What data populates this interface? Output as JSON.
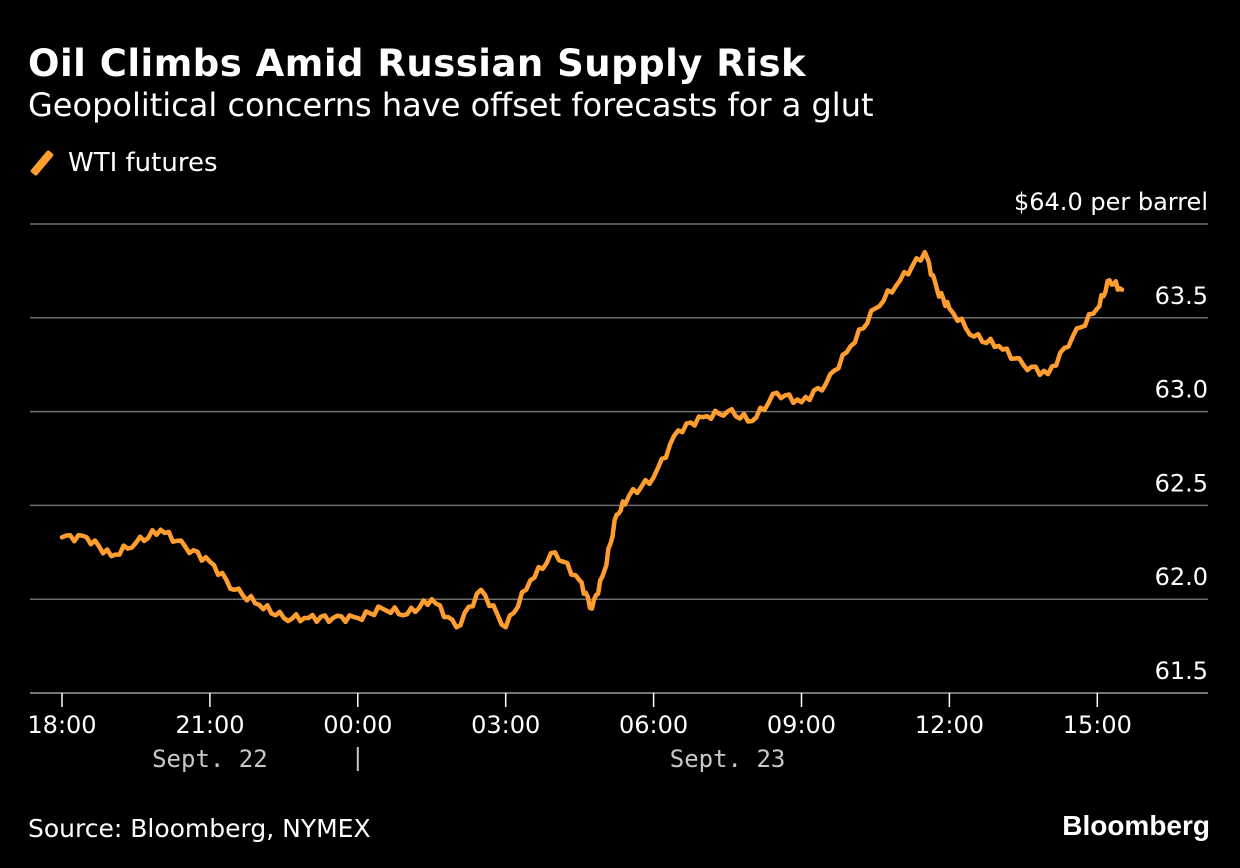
{
  "title": "Oil Climbs Amid Russian Supply Risk",
  "subtitle": "Geopolitical concerns have offset forecasts for a glut",
  "source": "Source: Bloomberg, NYMEX",
  "brand": "Bloomberg",
  "colors": {
    "series": "#ff9d2e",
    "background": "#000000",
    "grid": "#6e6e6e",
    "text": "#ffffff",
    "date_text": "#c8c8c8"
  },
  "chart_data": {
    "type": "line",
    "series": [
      {
        "name": "WTI futures",
        "x": [
          "18:00",
          "18:30",
          "19:00",
          "19:30",
          "20:00",
          "20:30",
          "21:00",
          "21:30",
          "22:00",
          "22:30",
          "23:00",
          "23:30",
          "00:00",
          "00:30",
          "01:00",
          "01:30",
          "02:00",
          "02:30",
          "03:00",
          "03:30",
          "04:00",
          "04:30",
          "04:45",
          "05:00",
          "05:15",
          "05:30",
          "06:00",
          "06:30",
          "07:00",
          "07:30",
          "08:00",
          "08:30",
          "09:00",
          "09:30",
          "10:00",
          "10:30",
          "11:00",
          "11:30",
          "11:45",
          "12:00",
          "12:30",
          "13:00",
          "13:30",
          "14:00",
          "14:30",
          "15:00",
          "15:15",
          "15:30"
        ],
        "values": [
          62.33,
          62.33,
          62.23,
          62.3,
          62.37,
          62.28,
          62.2,
          62.05,
          61.97,
          61.9,
          61.9,
          61.9,
          61.9,
          61.95,
          61.92,
          62.0,
          61.85,
          62.05,
          61.85,
          62.1,
          62.25,
          62.1,
          61.95,
          62.15,
          62.45,
          62.55,
          62.65,
          62.9,
          62.97,
          63.0,
          62.95,
          63.1,
          63.05,
          63.15,
          63.35,
          63.55,
          63.7,
          63.85,
          63.65,
          63.55,
          63.4,
          63.35,
          63.25,
          63.2,
          63.4,
          63.55,
          63.7,
          63.65
        ]
      }
    ],
    "ylim": [
      61.5,
      64.0
    ],
    "yticks": [
      61.5,
      62.0,
      62.5,
      63.0,
      63.5,
      64.0
    ],
    "ytick_labels": [
      "61.5",
      "62.0",
      "62.5",
      "63.0",
      "63.5",
      "$64.0 per barrel"
    ],
    "xticks": [
      "18:00",
      "21:00",
      "00:00",
      "03:00",
      "06:00",
      "09:00",
      "12:00",
      "15:00"
    ],
    "date_labels": [
      "Sept. 22",
      "Sept. 23"
    ],
    "grid": true,
    "legend_placement": "top-left"
  }
}
